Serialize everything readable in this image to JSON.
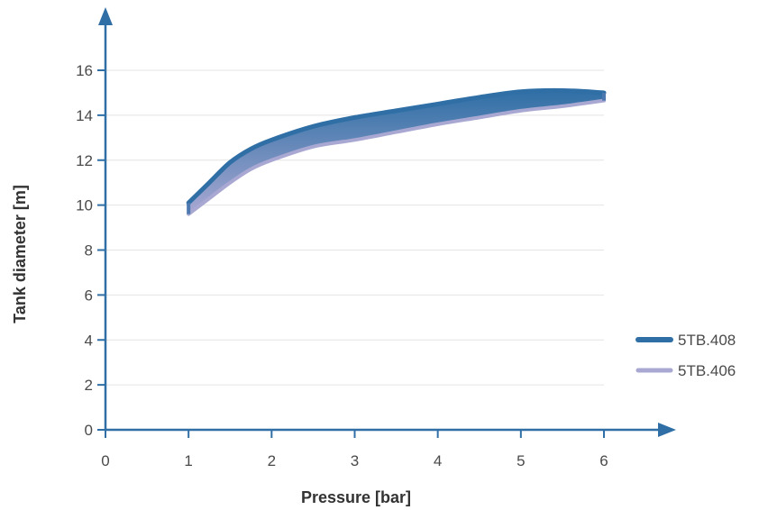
{
  "chart_data": {
    "type": "area",
    "xlabel": "Pressure [bar]",
    "ylabel": "Tank diameter [m]",
    "xlim": [
      0,
      6
    ],
    "ylim": [
      0,
      16
    ],
    "x_ticks": [
      "0",
      "1",
      "2",
      "3",
      "4",
      "5",
      "6"
    ],
    "y_ticks": [
      "0",
      "2",
      "4",
      "6",
      "8",
      "10",
      "12",
      "14",
      "16"
    ],
    "grid": "horizontal",
    "legend_position": "right",
    "series": [
      {
        "name": "5TB.408",
        "color": "#2f6fa5",
        "x": [
          1,
          1.25,
          1.5,
          1.75,
          2,
          2.5,
          3,
          3.5,
          4,
          4.5,
          5,
          5.5,
          6
        ],
        "y": [
          10.1,
          11.0,
          11.9,
          12.5,
          12.9,
          13.5,
          13.9,
          14.2,
          14.5,
          14.8,
          15.05,
          15.1,
          15.0
        ]
      },
      {
        "name": "5TB.406",
        "color": "#a9a8d2",
        "x": [
          1,
          1.25,
          1.5,
          1.75,
          2,
          2.5,
          3,
          3.5,
          4,
          4.5,
          5,
          5.5,
          6
        ],
        "y": [
          9.6,
          10.3,
          11.0,
          11.6,
          12.0,
          12.6,
          12.9,
          13.25,
          13.6,
          13.9,
          14.2,
          14.4,
          14.65
        ]
      }
    ]
  }
}
